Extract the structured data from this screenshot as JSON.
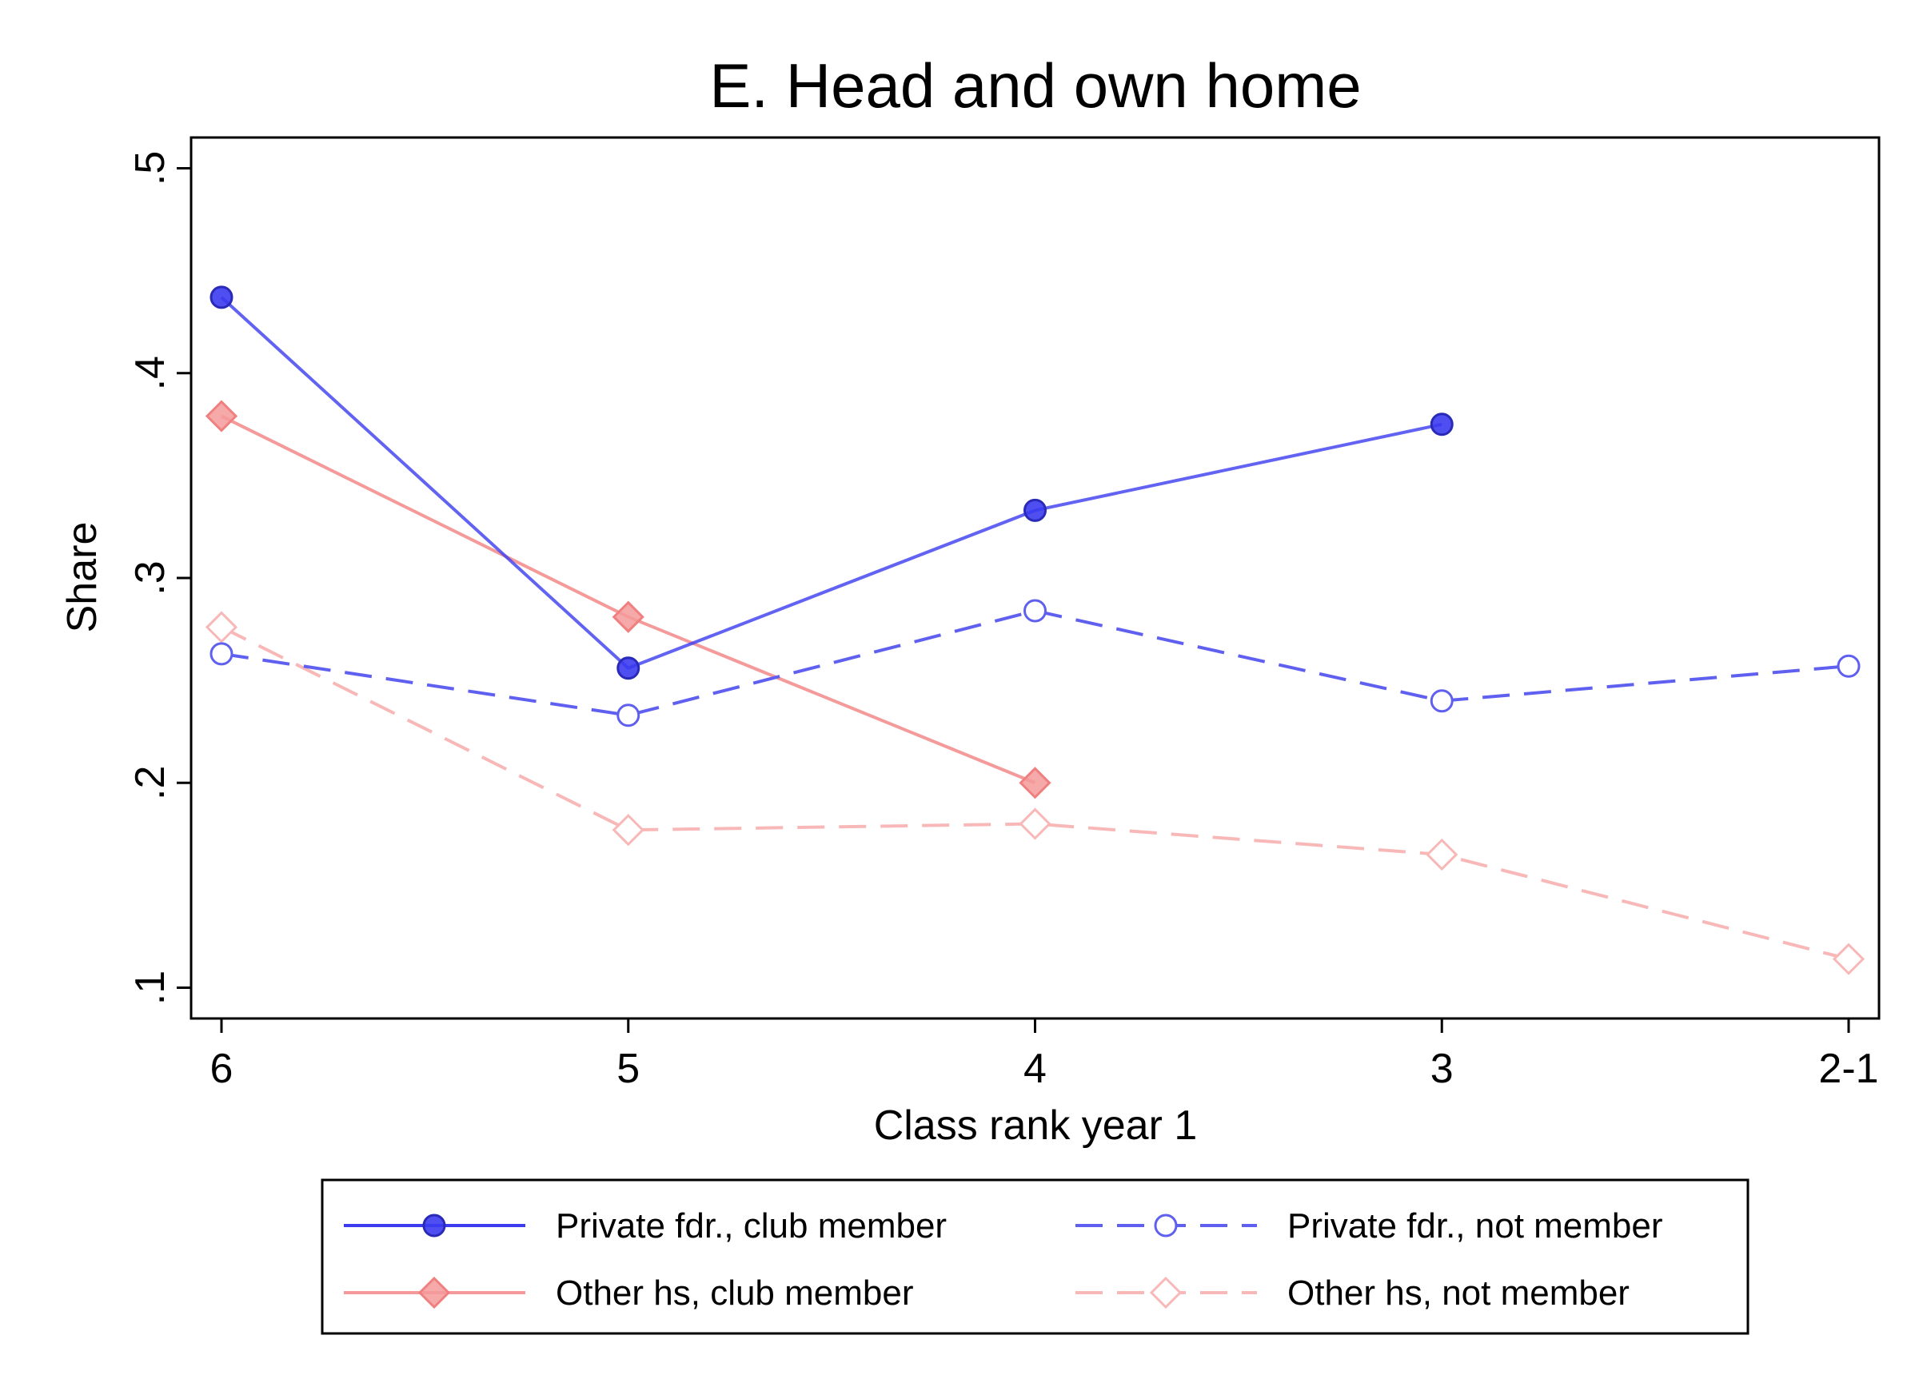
{
  "chart_data": {
    "type": "line",
    "title": "E. Head and own home",
    "xlabel": "Class rank year 1",
    "ylabel": "Share",
    "categories": [
      "6",
      "5",
      "4",
      "3",
      "2-1"
    ],
    "ylim": [
      0.085,
      0.515
    ],
    "yticks": [
      {
        "value": 0.1,
        "label": ".1"
      },
      {
        "value": 0.2,
        "label": ".2"
      },
      {
        "value": 0.3,
        "label": ".3"
      },
      {
        "value": 0.4,
        "label": ".4"
      },
      {
        "value": 0.5,
        "label": ".5"
      }
    ],
    "grid": false,
    "legend_position": "bottom",
    "series": [
      {
        "name": "Private fdr., club member",
        "values": [
          0.437,
          0.256,
          0.333,
          0.375,
          null
        ],
        "color": "#3b3bf0",
        "line": "solid",
        "marker": "circle-filled"
      },
      {
        "name": "Private fdr., not member",
        "values": [
          0.263,
          0.233,
          0.284,
          0.24,
          0.257
        ],
        "color": "#6060f0",
        "line": "dashed",
        "marker": "circle-hollow"
      },
      {
        "name": "Other hs, club member",
        "values": [
          0.379,
          0.281,
          0.2,
          null,
          null
        ],
        "color": "#f59a9a",
        "line": "solid",
        "marker": "diamond-filled"
      },
      {
        "name": "Other hs, not member",
        "values": [
          0.276,
          0.177,
          0.18,
          0.165,
          0.114
        ],
        "color": "#f8b8b8",
        "line": "dashed",
        "marker": "diamond-hollow"
      }
    ]
  }
}
